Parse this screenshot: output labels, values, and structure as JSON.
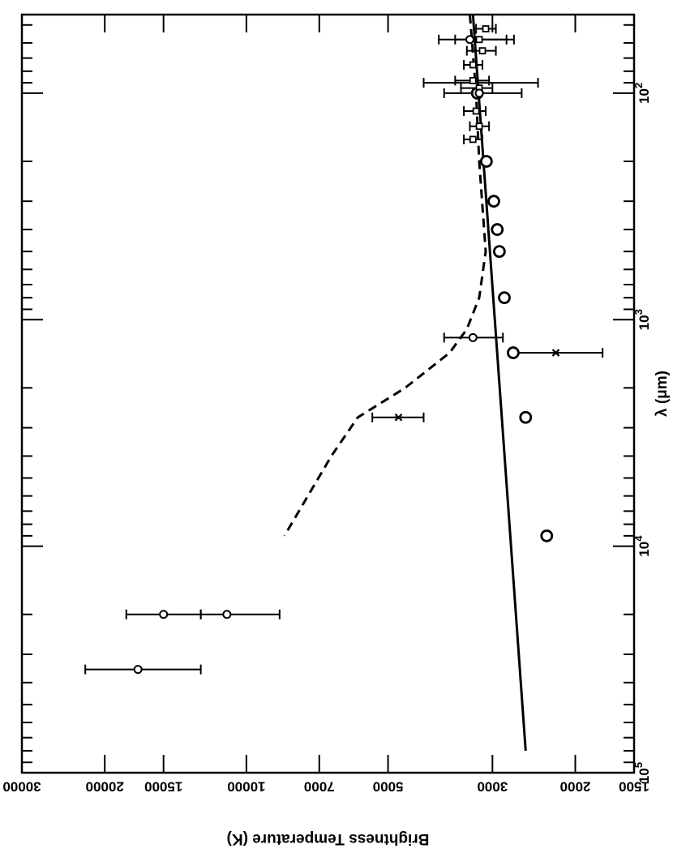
{
  "chart_data": {
    "type": "scatter",
    "orientation": "rotated-90-cw",
    "x_axis": {
      "label_main": "λ (",
      "label_unit": "μm",
      "label_close": ")",
      "scale": "log",
      "range": [
        45,
        80000
      ],
      "ticks": [
        {
          "value": 100,
          "base": "10",
          "exp": "2"
        },
        {
          "value": 1000,
          "base": "10",
          "exp": "3"
        },
        {
          "value": 10000,
          "base": "10",
          "exp": "4"
        },
        {
          "value": 100000,
          "base": "10",
          "exp": "5"
        }
      ]
    },
    "y_axis": {
      "label": "Brightness Temperature (K)",
      "scale": "log",
      "range": [
        1500,
        30000
      ],
      "ticks": [
        {
          "value": 1500,
          "label": "1500"
        },
        {
          "value": 2000,
          "label": "2000"
        },
        {
          "value": 3000,
          "label": "3000"
        },
        {
          "value": 5000,
          "label": "5000"
        },
        {
          "value": 7000,
          "label": "7000"
        },
        {
          "value": 10000,
          "label": "10000"
        },
        {
          "value": 15000,
          "label": "15000"
        },
        {
          "value": 20000,
          "label": "20000"
        },
        {
          "value": 30000,
          "label": "30000"
        }
      ]
    },
    "model_solid": {
      "style": "solid",
      "x": [
        45,
        80000
      ],
      "y": [
        3300,
        2550
      ]
    },
    "model_dashed": {
      "style": "dashed",
      "x": [
        45,
        100,
        200,
        500,
        800,
        1100,
        1400,
        2000,
        2700,
        4000,
        9000
      ],
      "y": [
        3350,
        3250,
        3200,
        3100,
        3200,
        3400,
        3700,
        4600,
        5800,
        6600,
        8300
      ]
    },
    "model_points": {
      "marker": "large-circle",
      "x": [
        100,
        200,
        300,
        400,
        500,
        800,
        1400,
        2700,
        9000
      ],
      "y": [
        3230,
        3090,
        2980,
        2930,
        2900,
        2830,
        2710,
        2550,
        2300
      ]
    },
    "square_points": {
      "marker": "square",
      "x": [
        52,
        58,
        65,
        75,
        88,
        95,
        120,
        140,
        160
      ],
      "y": [
        3100,
        3200,
        3150,
        3300,
        3300,
        3200,
        3250,
        3200,
        3300
      ],
      "yerr_low": [
        2950,
        2800,
        2950,
        3150,
        3050,
        3000,
        3100,
        3050,
        3150
      ],
      "yerr_high": [
        3250,
        3600,
        3400,
        3450,
        3600,
        3500,
        3450,
        3350,
        3450
      ]
    },
    "circle_points": {
      "marker": "circle",
      "x": [
        58,
        100,
        1200,
        20000,
        20000,
        35000
      ],
      "y": [
        3350,
        3200,
        3300,
        15000,
        11000,
        17000
      ],
      "yerr_low": [
        2700,
        2600,
        2850,
        12500,
        8500,
        12500
      ],
      "yerr_high": [
        3900,
        3800,
        3800,
        18000,
        12500,
        22000
      ]
    },
    "star_points": {
      "marker": "star",
      "x": [
        1400,
        2700
      ],
      "y": [
        2200,
        4750
      ],
      "yerr_low": [
        1750,
        4200
      ],
      "yerr_high": [
        2750,
        5400
      ]
    },
    "wide_errorbar": {
      "x": [
        90
      ],
      "y": [
        3200
      ],
      "yerr_low": [
        2400
      ],
      "yerr_high": [
        4200
      ]
    }
  }
}
